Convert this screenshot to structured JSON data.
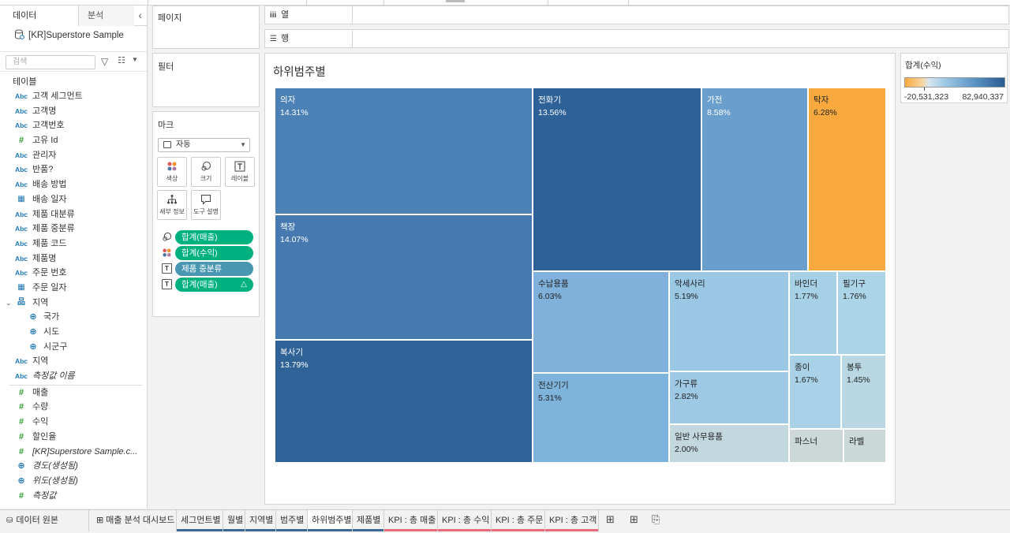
{
  "data_pane": {
    "tab_data": "데이터",
    "tab_analysis": "분석",
    "collapse_icon": "chevron-left-icon",
    "datasource": "[KR]Superstore Sample",
    "search_placeholder": "검색",
    "tables_heading": "테이블",
    "dimensions": [
      {
        "label": "고객 세그먼트",
        "type": "Abc"
      },
      {
        "label": "고객명",
        "type": "Abc"
      },
      {
        "label": "고객번호",
        "type": "Abc"
      },
      {
        "label": "고유 Id",
        "type": "#"
      },
      {
        "label": "관리자",
        "type": "Abc"
      },
      {
        "label": "반품?",
        "type": "Abc"
      },
      {
        "label": "배송 방법",
        "type": "Abc"
      },
      {
        "label": "배송 일자",
        "type": "date"
      },
      {
        "label": "제품 대분류",
        "type": "Abc"
      },
      {
        "label": "제품 중분류",
        "type": "Abc"
      },
      {
        "label": "제품 코드",
        "type": "Abc"
      },
      {
        "label": "제품명",
        "type": "Abc"
      },
      {
        "label": "주문 번호",
        "type": "Abc"
      },
      {
        "label": "주문 일자",
        "type": "date"
      }
    ],
    "hierarchy": {
      "label": "지역",
      "children": [
        "국가",
        "시도",
        "시군구"
      ]
    },
    "dimensions_after": [
      {
        "label": "지역",
        "type": "Abc",
        "italic": false
      },
      {
        "label": "측정값 이름",
        "type": "Abc",
        "italic": true
      }
    ],
    "measures": [
      {
        "label": "매출",
        "type": "#",
        "italic": false
      },
      {
        "label": "수량",
        "type": "#",
        "italic": false
      },
      {
        "label": "수익",
        "type": "#",
        "italic": false
      },
      {
        "label": "할인율",
        "type": "#",
        "italic": false
      },
      {
        "label": "[KR]Superstore Sample.c...",
        "type": "#",
        "italic": true
      },
      {
        "label": "경도(생성됨)",
        "type": "geo",
        "italic": true
      },
      {
        "label": "위도(생성됨)",
        "type": "geo",
        "italic": true
      },
      {
        "label": "측정값",
        "type": "#",
        "italic": true
      }
    ]
  },
  "shelves": {
    "pages": "페이지",
    "filters": "필터",
    "marks": "마크",
    "mark_type": "자동",
    "columns": "열",
    "rows": "행",
    "mark_buttons": [
      {
        "label": "색상",
        "icon": "color-dots-icon"
      },
      {
        "label": "크기",
        "icon": "size-circles-icon"
      },
      {
        "label": "레이블",
        "icon": "text-label-icon"
      },
      {
        "label": "세부 정보",
        "icon": "detail-tree-icon"
      },
      {
        "label": "도구 설명",
        "icon": "tooltip-bubble-icon"
      }
    ],
    "mark_pills": [
      {
        "label": "합계(매출)",
        "icon": "size-icon",
        "color": "#00b180"
      },
      {
        "label": "합계(수익)",
        "icon": "color-icon",
        "color": "#00b180"
      },
      {
        "label": "제품 중분류",
        "icon": "label-icon",
        "color": "#4996b2"
      },
      {
        "label": "합계(매출)",
        "icon": "label-icon",
        "color": "#00b180",
        "delta": "△"
      }
    ]
  },
  "viz": {
    "title": "하위범주별",
    "legend": {
      "title": "합계(수익)",
      "min": "-20,531,323",
      "max": "82,940,337"
    },
    "cells": [
      {
        "name": "의자",
        "pct": "14.31%",
        "color": "#4c81b6",
        "text": "dark"
      },
      {
        "name": "책장",
        "pct": "14.07%",
        "color": "#4679b0",
        "text": "dark"
      },
      {
        "name": "복사기",
        "pct": "13.79%",
        "color": "#2f6398",
        "text": "dark"
      },
      {
        "name": "전화기",
        "pct": "13.56%",
        "color": "#2d6198",
        "text": "dark"
      },
      {
        "name": "가전",
        "pct": "8.58%",
        "color": "#6a9fcd",
        "text": "dark"
      },
      {
        "name": "탁자",
        "pct": "6.28%",
        "color": "#f9a93e",
        "text": "light"
      },
      {
        "name": "수납용품",
        "pct": "6.03%",
        "color": "#7fb1da",
        "text": "light"
      },
      {
        "name": "전산기기",
        "pct": "5.31%",
        "color": "#7eb3dc",
        "text": "light"
      },
      {
        "name": "악세사리",
        "pct": "5.19%",
        "color": "#99c7e4",
        "text": "light"
      },
      {
        "name": "가구류",
        "pct": "2.82%",
        "color": "#9dc9e5",
        "text": "light"
      },
      {
        "name": "일반 사무용품",
        "pct": "2.00%",
        "color": "#c2d7de",
        "text": "light"
      },
      {
        "name": "바인더",
        "pct": "1.77%",
        "color": "#a6d0e6",
        "text": "light"
      },
      {
        "name": "필기구",
        "pct": "1.76%",
        "color": "#acd4e8",
        "text": "light"
      },
      {
        "name": "종이",
        "pct": "1.67%",
        "color": "#a9d1e7",
        "text": "light"
      },
      {
        "name": "봉투",
        "pct": "1.45%",
        "color": "#b8d7e3",
        "text": "light"
      },
      {
        "name": "파스너",
        "pct": "",
        "color": "#ccd7d7",
        "text": "light"
      },
      {
        "name": "라벨",
        "pct": "",
        "color": "#cbd8d8",
        "text": "light"
      }
    ]
  },
  "tabs": {
    "datasource": "데이터 원본",
    "sheets": [
      {
        "label": "매출 분석 대시보드",
        "accent": "#f2f2f2",
        "icon": "dashboard-grid-icon"
      },
      {
        "label": "세그먼트별",
        "accent": "#3b6a98"
      },
      {
        "label": "월별",
        "accent": "#3b6a98"
      },
      {
        "label": "지역별",
        "accent": "#3b6a98"
      },
      {
        "label": "범주별",
        "accent": "#3b6a98"
      },
      {
        "label": "하위범주별",
        "accent": "#3b6a98",
        "active": true
      },
      {
        "label": "제품별",
        "accent": "#3b6a98"
      },
      {
        "label": "KPI : 총 매출",
        "accent": "#e86a7c"
      },
      {
        "label": "KPI : 총 수익",
        "accent": "#e86a7c"
      },
      {
        "label": "KPI : 총 주문",
        "accent": "#e86a7c"
      },
      {
        "label": "KPI : 총 고객",
        "accent": "#e86a7c"
      }
    ],
    "new_sheet_icon": "new-worksheet-icon",
    "new_dashboard_icon": "new-dashboard-icon",
    "new_story_icon": "new-story-icon"
  }
}
